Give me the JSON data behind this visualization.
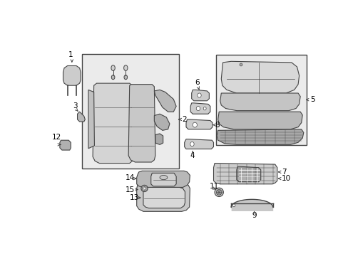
{
  "bg_color": "#ffffff",
  "line_color": "#444444",
  "gray_light": "#e0e0e0",
  "gray_mid": "#c0c0c0",
  "gray_dark": "#909090",
  "box_fill": "#ebebeb"
}
